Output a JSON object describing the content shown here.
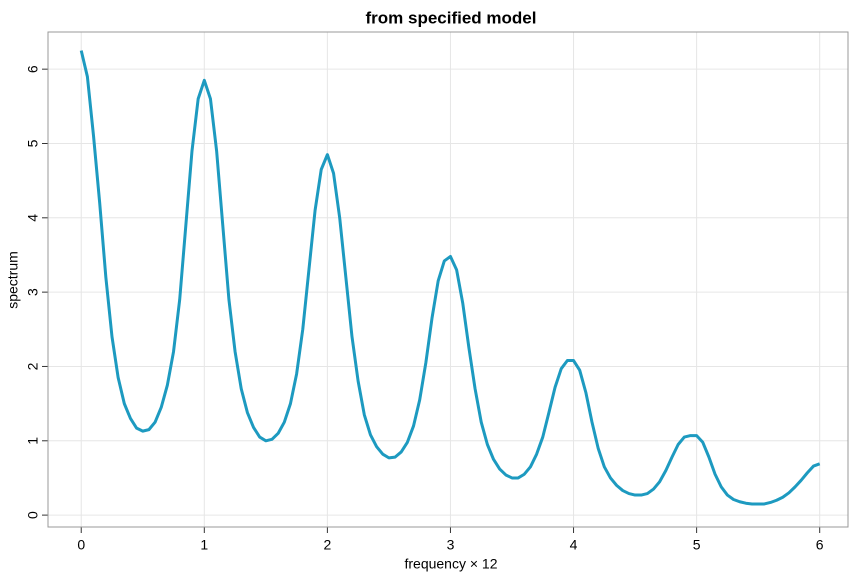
{
  "chart_data": {
    "type": "line",
    "title": "from specified model",
    "xlabel": "frequency × 12",
    "ylabel": "spectrum",
    "x": [
      0,
      0.05,
      0.1,
      0.15,
      0.2,
      0.25,
      0.3,
      0.35,
      0.4,
      0.45,
      0.5,
      0.55,
      0.6,
      0.65,
      0.7,
      0.75,
      0.8,
      0.85,
      0.9,
      0.95,
      1,
      1.05,
      1.1,
      1.15,
      1.2,
      1.25,
      1.3,
      1.35,
      1.4,
      1.45,
      1.5,
      1.55,
      1.6,
      1.65,
      1.7,
      1.75,
      1.8,
      1.85,
      1.9,
      1.95,
      2,
      2.05,
      2.1,
      2.15,
      2.2,
      2.25,
      2.3,
      2.35,
      2.4,
      2.45,
      2.5,
      2.55,
      2.6,
      2.65,
      2.7,
      2.75,
      2.8,
      2.85,
      2.9,
      2.95,
      3,
      3.05,
      3.1,
      3.15,
      3.2,
      3.25,
      3.3,
      3.35,
      3.4,
      3.45,
      3.5,
      3.55,
      3.6,
      3.65,
      3.7,
      3.75,
      3.8,
      3.85,
      3.9,
      3.95,
      4,
      4.05,
      4.1,
      4.15,
      4.2,
      4.25,
      4.3,
      4.35,
      4.4,
      4.45,
      4.5,
      4.55,
      4.6,
      4.65,
      4.7,
      4.75,
      4.8,
      4.85,
      4.9,
      4.95,
      5,
      5.05,
      5.1,
      5.15,
      5.2,
      5.25,
      5.3,
      5.35,
      5.4,
      5.45,
      5.5,
      5.55,
      5.6,
      5.65,
      5.7,
      5.75,
      5.8,
      5.85,
      5.9,
      5.95,
      6
    ],
    "series": [
      {
        "name": "spectrum",
        "color": "#1d9ac0",
        "values": [
          6.25,
          5.9,
          5.1,
          4.2,
          3.2,
          2.4,
          1.85,
          1.5,
          1.3,
          1.17,
          1.13,
          1.15,
          1.25,
          1.45,
          1.75,
          2.2,
          2.9,
          3.9,
          4.9,
          5.6,
          5.85,
          5.6,
          4.9,
          3.9,
          2.9,
          2.2,
          1.7,
          1.38,
          1.18,
          1.05,
          1.0,
          1.02,
          1.1,
          1.25,
          1.5,
          1.9,
          2.5,
          3.3,
          4.1,
          4.65,
          4.85,
          4.6,
          4.0,
          3.2,
          2.4,
          1.8,
          1.35,
          1.08,
          0.92,
          0.82,
          0.77,
          0.78,
          0.85,
          0.98,
          1.2,
          1.55,
          2.05,
          2.65,
          3.15,
          3.42,
          3.48,
          3.3,
          2.85,
          2.25,
          1.7,
          1.25,
          0.95,
          0.75,
          0.62,
          0.54,
          0.5,
          0.5,
          0.55,
          0.65,
          0.82,
          1.05,
          1.38,
          1.72,
          1.97,
          2.08,
          2.08,
          1.95,
          1.65,
          1.25,
          0.9,
          0.65,
          0.5,
          0.4,
          0.33,
          0.29,
          0.27,
          0.27,
          0.29,
          0.35,
          0.45,
          0.6,
          0.78,
          0.95,
          1.05,
          1.07,
          1.07,
          0.98,
          0.78,
          0.55,
          0.38,
          0.27,
          0.21,
          0.18,
          0.16,
          0.15,
          0.15,
          0.15,
          0.17,
          0.2,
          0.24,
          0.3,
          0.38,
          0.47,
          0.57,
          0.66,
          0.69
        ]
      }
    ],
    "xlim": [
      -0.27,
      6.23
    ],
    "ylim": [
      -0.16,
      6.5
    ],
    "xticks": [
      0,
      1,
      2,
      3,
      4,
      5,
      6
    ],
    "yticks": [
      0,
      1,
      2,
      3,
      4,
      5,
      6
    ],
    "grid": true
  }
}
